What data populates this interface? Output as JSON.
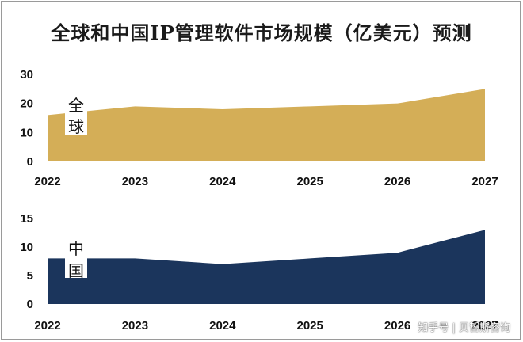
{
  "title": "全球和中国IP管理软件市场规模（亿美元）预测",
  "watermark": "知乎号 | 贝哲斯咨询",
  "colors": {
    "global_fill": "#d4ae57",
    "china_fill": "#1b355c",
    "label_bg": "#ffffff"
  },
  "chart_data": [
    {
      "type": "area",
      "categories": [
        "2022",
        "2023",
        "2024",
        "2025",
        "2026",
        "2027"
      ],
      "series": [
        {
          "name": "全球",
          "values": [
            16,
            19,
            18,
            19,
            20,
            25
          ]
        }
      ],
      "ylim": [
        0,
        30
      ],
      "yticks": [
        0,
        10,
        20,
        30
      ],
      "grid": false,
      "legend": "none"
    },
    {
      "type": "area",
      "categories": [
        "2022",
        "2023",
        "2024",
        "2025",
        "2026",
        "2027"
      ],
      "series": [
        {
          "name": "中国",
          "values": [
            8,
            8,
            7,
            8,
            9,
            13
          ]
        }
      ],
      "ylim": [
        0,
        15
      ],
      "yticks": [
        0,
        5,
        10,
        15
      ],
      "grid": false,
      "legend": "none"
    }
  ]
}
